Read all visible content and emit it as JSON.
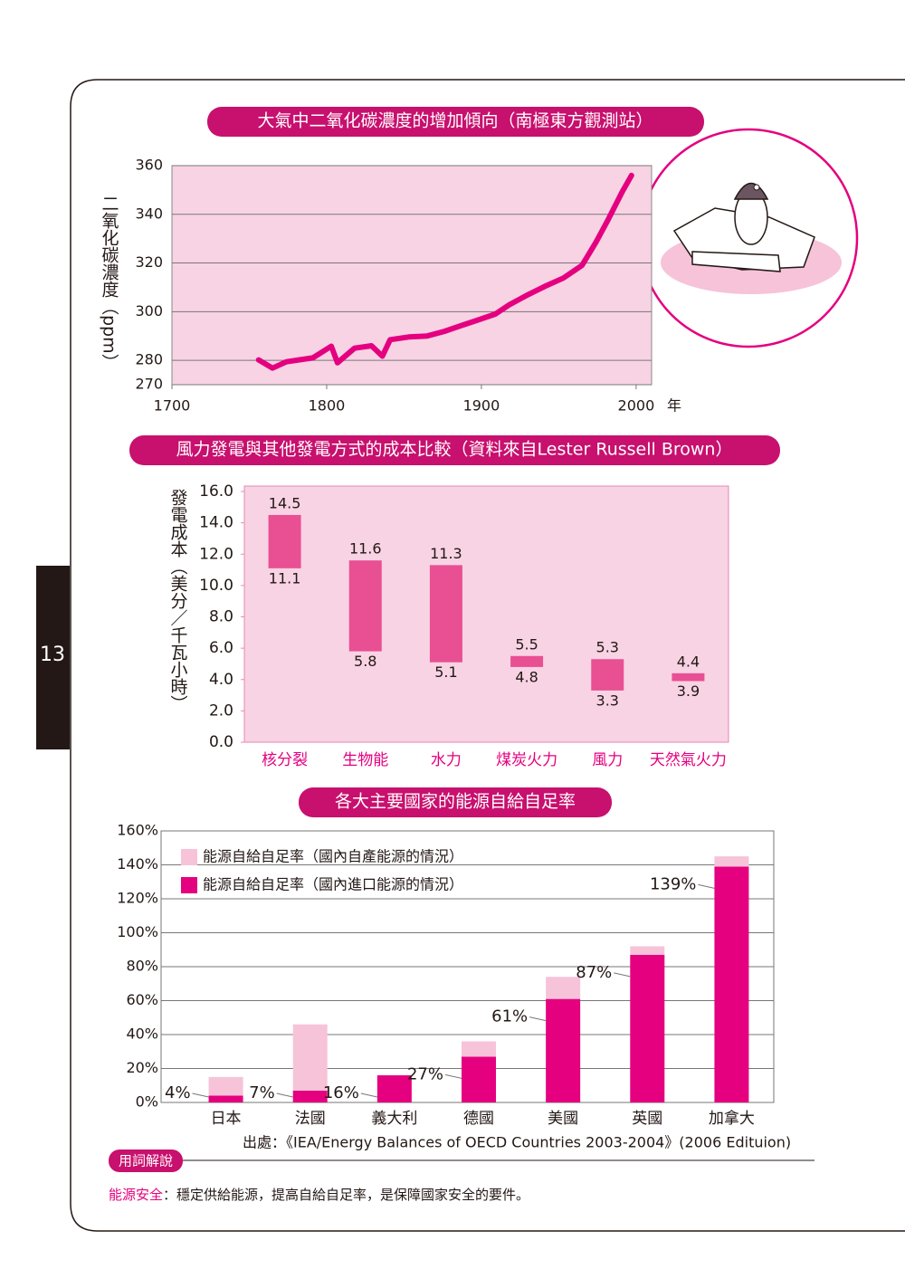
{
  "page_number": "13",
  "chart_data": [
    {
      "type": "line",
      "title": "大氣中二氧化碳濃度的增加傾向（南極東方觀測站）",
      "y_label": "二氧化碳濃度（ppm）",
      "x_unit": "年",
      "x": [
        1756,
        1765,
        1774,
        1791,
        1803,
        1807,
        1818,
        1829,
        1836,
        1841,
        1853,
        1865,
        1876,
        1888,
        1897,
        1909,
        1918,
        1929,
        1941,
        1953,
        1965,
        1974,
        1982,
        1991,
        1997
      ],
      "values": [
        280.2,
        276.8,
        279.4,
        281,
        285.8,
        279,
        285,
        286,
        281.7,
        288.5,
        289.6,
        290,
        291.9,
        294.5,
        296.4,
        299,
        302.8,
        306.6,
        310.4,
        313.8,
        319,
        328.5,
        337.9,
        349.2,
        356
      ],
      "color": "#e4007f",
      "xlim": [
        1700,
        2010
      ],
      "ylim": [
        270,
        360
      ],
      "xticks": [
        1700,
        1800,
        1900,
        2000
      ],
      "yticks": [
        270,
        280,
        300,
        320,
        340,
        360
      ],
      "grid": true
    },
    {
      "type": "floating_bar",
      "title": "風力發電與其他發電方式的成本比較（資料來自Lester Russell Brown）",
      "y_label": "發電成本（美分／千瓦小時）",
      "categories": [
        "核分裂",
        "生物能",
        "水力",
        "煤炭火力",
        "風力",
        "天然氣火力"
      ],
      "low": [
        11.1,
        5.8,
        5.1,
        4.8,
        3.3,
        3.9
      ],
      "high": [
        14.5,
        11.6,
        11.3,
        5.5,
        5.3,
        4.4
      ],
      "color": "#e94f93",
      "ylim": [
        0,
        16
      ],
      "yticks": [
        {
          "value": 0,
          "label": "0.0"
        },
        {
          "value": 2,
          "label": "2.0"
        },
        {
          "value": 4,
          "label": "4.0"
        },
        {
          "value": 6,
          "label": "6.0"
        },
        {
          "value": 8,
          "label": "8.0"
        },
        {
          "value": 10,
          "label": "10.0"
        },
        {
          "value": 12,
          "label": "12.0"
        },
        {
          "value": 14,
          "label": "14.0"
        },
        {
          "value": 16,
          "label": "16.0"
        }
      ]
    },
    {
      "type": "stacked_bar",
      "title": "各大主要國家的能源自給自足率",
      "source": "出處：《IEA/Energy Balances of OECD Countries 2003-2004》(2006 Edituion)",
      "categories": [
        "日本",
        "法國",
        "義大利",
        "德國",
        "美國",
        "英國",
        "加拿大"
      ],
      "series": [
        {
          "name": "能源自給自足率（國內自產能源的情況）",
          "color": "#f6c3d9",
          "values": [
            11,
            39,
            0,
            9,
            13,
            5,
            6
          ]
        },
        {
          "name": "能源自給自足率（國內進口能源的情況）",
          "color": "#e4007f",
          "values": [
            4,
            7,
            16,
            27,
            61,
            87,
            139
          ],
          "value_labels": [
            "4%",
            "7%",
            "16%",
            "27%",
            "61%",
            "87%",
            "139%"
          ]
        }
      ],
      "ylim": [
        0,
        160
      ],
      "yticks": [
        {
          "value": 0,
          "label": "0%"
        },
        {
          "value": 20,
          "label": "20%"
        },
        {
          "value": 40,
          "label": "40%"
        },
        {
          "value": 60,
          "label": "60%"
        },
        {
          "value": 80,
          "label": "80%"
        },
        {
          "value": 100,
          "label": "100%"
        },
        {
          "value": 120,
          "label": "120%"
        },
        {
          "value": 140,
          "label": "140%"
        },
        {
          "value": 160,
          "label": "160%"
        }
      ],
      "grid": true
    }
  ],
  "glossary": {
    "tag": "用詞解說",
    "term": "能源安全",
    "definition": "：穩定供給能源，提高自給自足率，是保障國家安全的要件。"
  }
}
